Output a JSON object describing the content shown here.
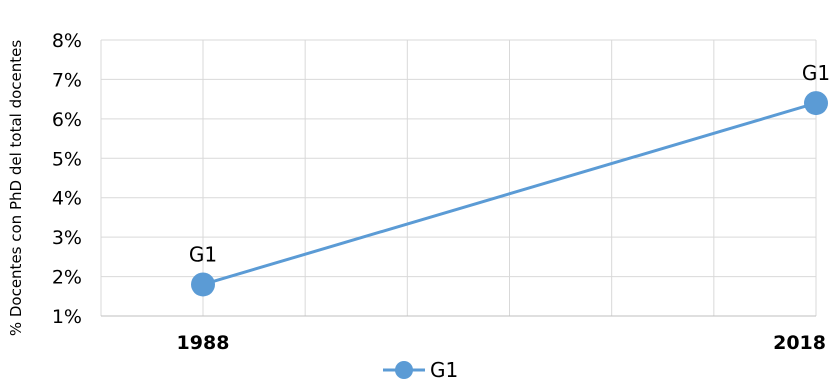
{
  "chart_data": {
    "type": "line",
    "categories": [
      "1988",
      "",
      "",
      "",
      "",
      "",
      "2018"
    ],
    "ylabel": "% Docentes con PhD del total docentes",
    "xlabel": "",
    "ylim": [
      0.01,
      0.08
    ],
    "yticks": [
      "1%",
      "2%",
      "3%",
      "4%",
      "5%",
      "6%",
      "7%",
      "8%"
    ],
    "grid": true,
    "legend_position": "bottom",
    "series": [
      {
        "name": "G1",
        "color": "#5b9bd5",
        "points": [
          {
            "x": "1988",
            "y": 0.018,
            "label": "G1"
          },
          {
            "x": "2018",
            "y": 0.064,
            "label": "G1"
          }
        ]
      }
    ]
  }
}
